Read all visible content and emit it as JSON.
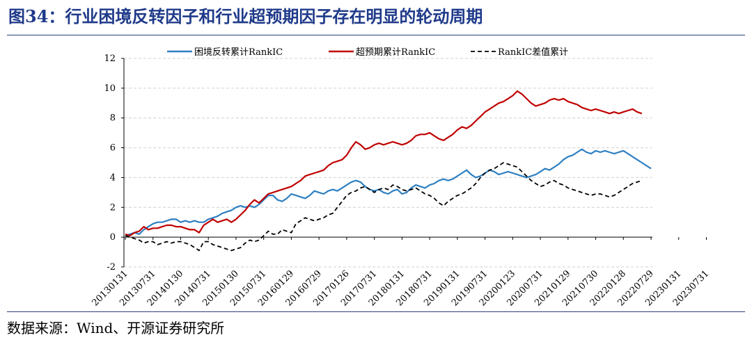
{
  "title": "图34：行业困境反转因子和行业超预期因子存在明显的轮动周期",
  "source": "数据来源：Wind、开源证券研究所",
  "chart_data": {
    "type": "line",
    "ylim": [
      -2,
      12
    ],
    "y_ticks": [
      -2,
      0,
      2,
      4,
      6,
      8,
      10,
      12
    ],
    "x_tick_labels": [
      "20130131",
      "20130731",
      "20140130",
      "20140731",
      "20150130",
      "20150731",
      "20160129",
      "20160729",
      "20170126",
      "20170731",
      "20180131",
      "20180731",
      "20190131",
      "20190731",
      "20200123",
      "20200731",
      "20210129",
      "20210730",
      "20220128",
      "20220729",
      "20230131",
      "20230731"
    ],
    "grid": "horizontal dashed",
    "legend_position": "top",
    "series": [
      {
        "name": "困境反转累计RankIC",
        "color": "#2e7fc1",
        "dash": "solid",
        "values": [
          0.1,
          0.2,
          0.3,
          0.2,
          0.5,
          0.7,
          0.9,
          1.0,
          1.0,
          1.1,
          1.2,
          1.2,
          1.0,
          1.1,
          1.0,
          1.1,
          1.0,
          1.0,
          1.2,
          1.3,
          1.4,
          1.6,
          1.7,
          1.8,
          2.0,
          2.1,
          2.0,
          2.1,
          2.0,
          2.2,
          2.5,
          2.8,
          2.8,
          2.5,
          2.4,
          2.6,
          2.9,
          2.8,
          2.7,
          2.6,
          2.8,
          3.1,
          3.0,
          2.9,
          3.1,
          3.2,
          3.1,
          3.3,
          3.5,
          3.7,
          3.8,
          3.7,
          3.4,
          3.2,
          3.1,
          3.2,
          3.0,
          2.9,
          3.1,
          3.2,
          2.9,
          3.0,
          3.3,
          3.5,
          3.4,
          3.3,
          3.5,
          3.6,
          3.8,
          3.9,
          3.8,
          3.9,
          4.1,
          4.3,
          4.5,
          4.2,
          4.0,
          4.1,
          4.3,
          4.5,
          4.4,
          4.2,
          4.3,
          4.4,
          4.3,
          4.2,
          4.1,
          4.0,
          4.1,
          4.2,
          4.4,
          4.6,
          4.5,
          4.7,
          4.9,
          5.2,
          5.4,
          5.5,
          5.7,
          5.9,
          5.7,
          5.6,
          5.8,
          5.7,
          5.8,
          5.7,
          5.6,
          5.7,
          5.8,
          5.6,
          5.4,
          5.2,
          5.0,
          4.8,
          4.6
        ]
      },
      {
        "name": "超预期累计RankIC",
        "color": "#c00000",
        "dash": "solid",
        "values": [
          0.2,
          0.1,
          0.3,
          0.4,
          0.7,
          0.5,
          0.6,
          0.6,
          0.7,
          0.8,
          0.8,
          0.7,
          0.7,
          0.6,
          0.5,
          0.5,
          0.3,
          0.8,
          1.0,
          1.2,
          1.0,
          1.1,
          1.2,
          1.0,
          1.2,
          1.5,
          1.8,
          2.2,
          2.5,
          2.3,
          2.6,
          2.9,
          3.0,
          3.1,
          3.2,
          3.3,
          3.4,
          3.6,
          3.8,
          4.1,
          4.2,
          4.3,
          4.4,
          4.5,
          4.8,
          5.0,
          5.1,
          5.2,
          5.5,
          6.0,
          6.4,
          6.2,
          5.9,
          6.0,
          6.2,
          6.3,
          6.2,
          6.3,
          6.4,
          6.3,
          6.2,
          6.3,
          6.5,
          6.8,
          6.9,
          6.9,
          7.0,
          6.8,
          6.6,
          6.5,
          6.7,
          6.9,
          7.2,
          7.4,
          7.3,
          7.5,
          7.8,
          8.1,
          8.4,
          8.6,
          8.8,
          9.0,
          9.1,
          9.3,
          9.5,
          9.8,
          9.6,
          9.3,
          9.0,
          8.8,
          8.9,
          9.0,
          9.2,
          9.3,
          9.2,
          9.3,
          9.1,
          9.0,
          8.9,
          8.7,
          8.6,
          8.5,
          8.6,
          8.5,
          8.4,
          8.3,
          8.4,
          8.3,
          8.4,
          8.5,
          8.6,
          8.4,
          8.3
        ]
      },
      {
        "name": "RankIC差值累计",
        "color": "#000000",
        "dash": "dashed",
        "values": [
          0.1,
          0.0,
          -0.1,
          -0.2,
          -0.4,
          -0.3,
          -0.3,
          -0.5,
          -0.4,
          -0.3,
          -0.4,
          -0.3,
          -0.3,
          -0.4,
          -0.5,
          -0.7,
          -0.9,
          -0.3,
          -0.3,
          -0.5,
          -0.6,
          -0.7,
          -0.8,
          -0.9,
          -0.8,
          -0.7,
          -0.4,
          -0.2,
          -0.3,
          -0.2,
          0.1,
          0.4,
          0.2,
          0.2,
          0.5,
          0.4,
          0.3,
          0.9,
          1.1,
          1.3,
          1.2,
          1.1,
          1.2,
          1.3,
          1.5,
          1.6,
          2.0,
          2.4,
          2.8,
          3.0,
          3.1,
          3.3,
          3.4,
          3.2,
          3.0,
          3.2,
          3.3,
          3.2,
          3.5,
          3.4,
          3.2,
          3.1,
          3.2,
          3.3,
          3.1,
          2.9,
          2.8,
          2.6,
          2.3,
          2.1,
          2.4,
          2.6,
          2.8,
          2.9,
          3.1,
          3.3,
          3.6,
          4.0,
          4.3,
          4.5,
          4.6,
          4.8,
          5.0,
          4.9,
          4.8,
          4.7,
          4.4,
          4.1,
          3.8,
          3.6,
          3.4,
          3.5,
          3.7,
          3.8,
          3.6,
          3.5,
          3.3,
          3.2,
          3.1,
          3.0,
          2.9,
          2.8,
          2.9,
          2.9,
          2.8,
          2.7,
          2.8,
          3.0,
          3.2,
          3.4,
          3.6,
          3.7,
          3.8
        ]
      }
    ]
  }
}
